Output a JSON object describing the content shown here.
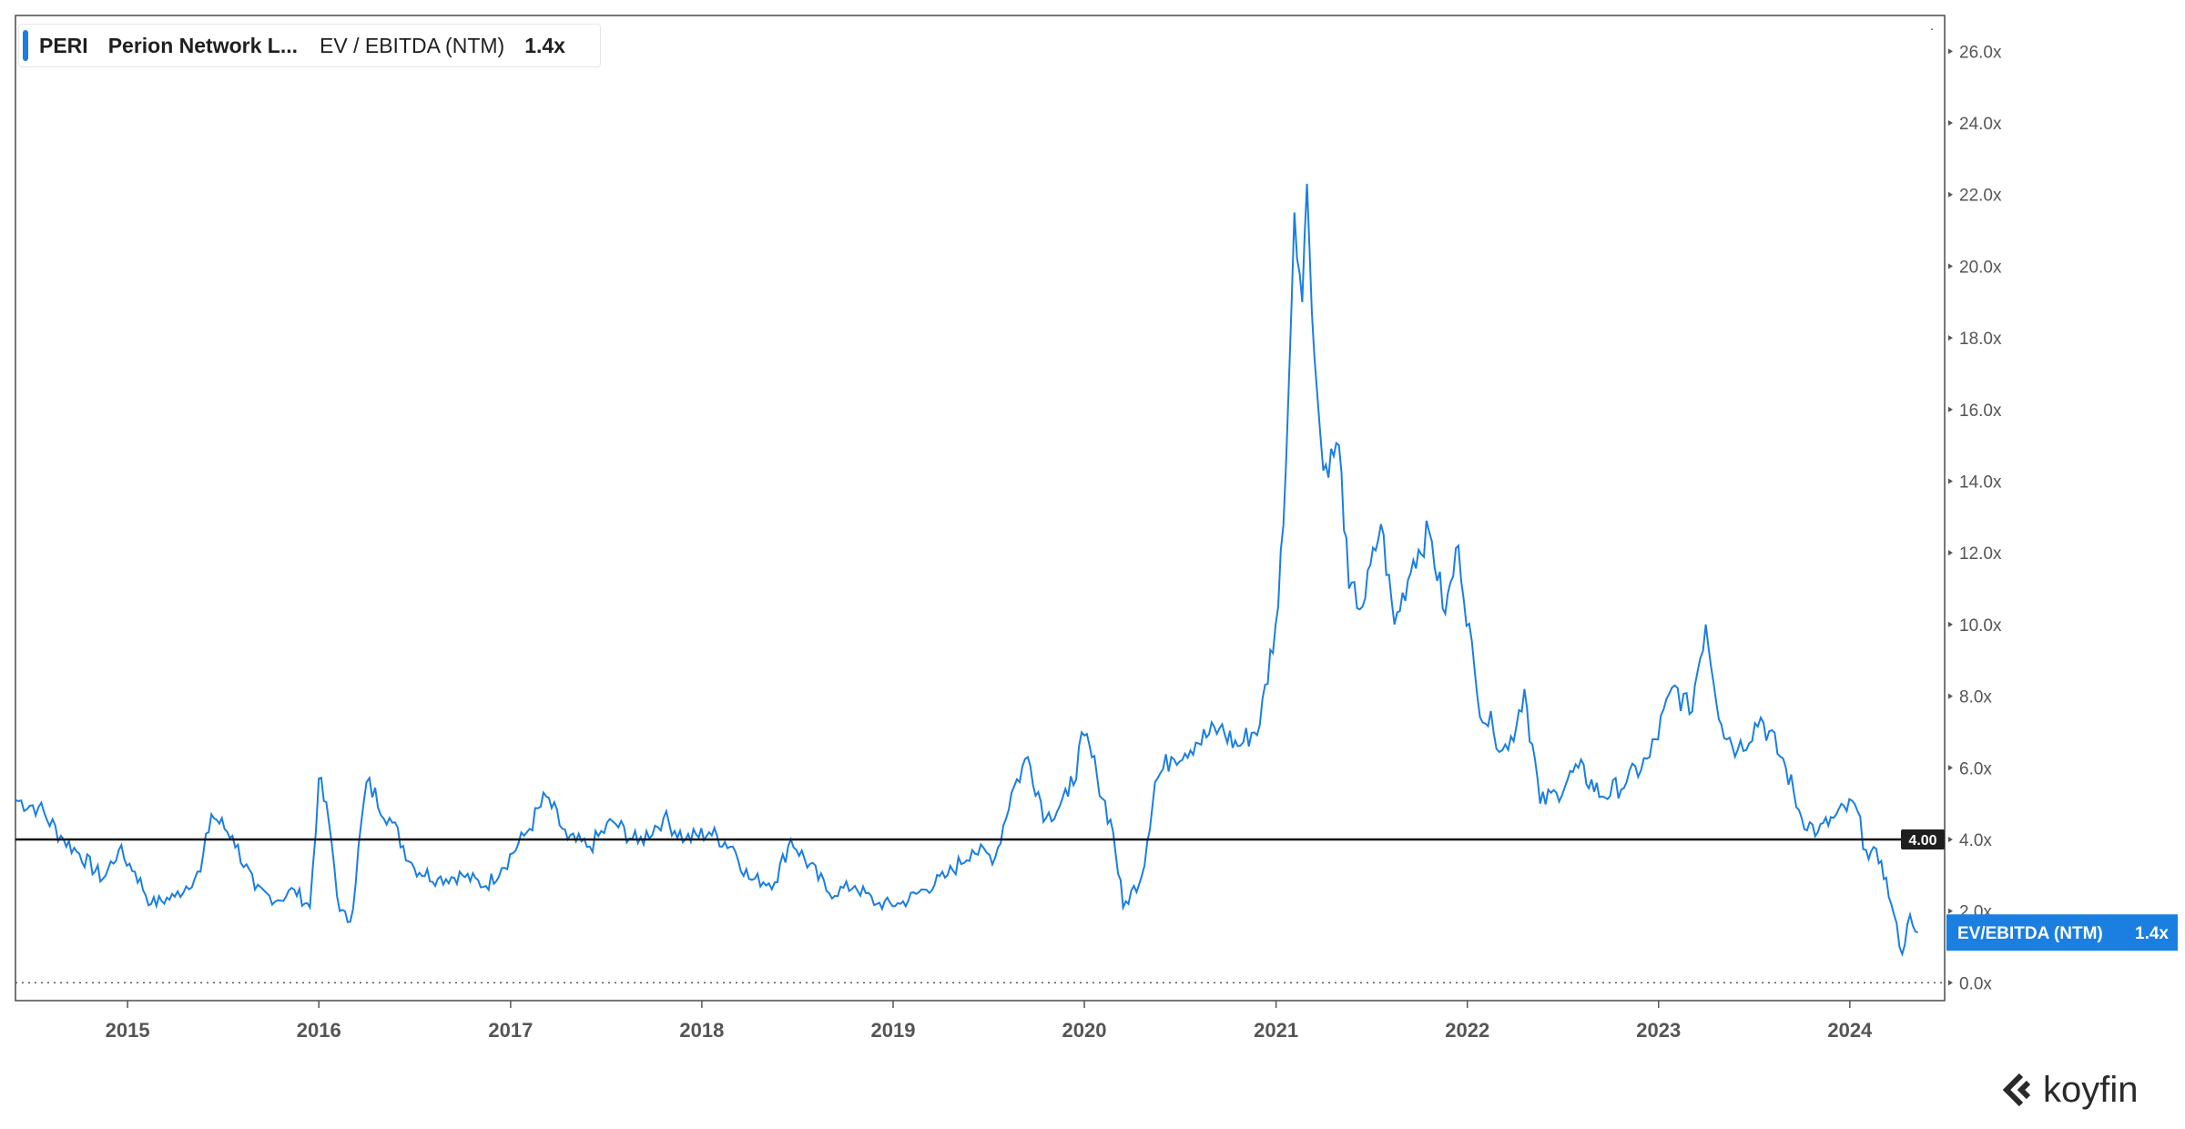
{
  "legend": {
    "ticker": "PERI",
    "company": "Perion Network L...",
    "metric": "EV / EBITDA (NTM)",
    "value": "1.4x"
  },
  "brand": {
    "name": "koyfin"
  },
  "colors": {
    "series": "#1a7fe0",
    "reference": "#111111",
    "axis": "#555555",
    "frame": "#4a4a4a"
  },
  "chart_data": {
    "type": "line",
    "series": [
      {
        "name": "EV/EBITDA (NTM)",
        "last_value_label": "1.4x",
        "points": [
          [
            "2014-06-01",
            5.1
          ],
          [
            "2014-07-15",
            4.9
          ],
          [
            "2014-09-01",
            4.0
          ],
          [
            "2014-10-01",
            3.6
          ],
          [
            "2014-11-15",
            2.9
          ],
          [
            "2014-12-15",
            3.7
          ],
          [
            "2015-01-15",
            3.1
          ],
          [
            "2015-02-15",
            2.2
          ],
          [
            "2015-04-01",
            2.4
          ],
          [
            "2015-05-20",
            3.1
          ],
          [
            "2015-06-10",
            4.7
          ],
          [
            "2015-07-20",
            4.1
          ],
          [
            "2015-09-01",
            2.6
          ],
          [
            "2015-10-15",
            2.3
          ],
          [
            "2015-11-15",
            2.6
          ],
          [
            "2015-12-15",
            2.1
          ],
          [
            "2016-01-01",
            5.7
          ],
          [
            "2016-01-20",
            4.5
          ],
          [
            "2016-02-10",
            2.0
          ],
          [
            "2016-03-01",
            1.7
          ],
          [
            "2016-04-01",
            5.6
          ],
          [
            "2016-05-15",
            4.6
          ],
          [
            "2016-07-01",
            3.2
          ],
          [
            "2016-08-15",
            2.9
          ],
          [
            "2016-10-01",
            3.0
          ],
          [
            "2016-11-15",
            2.7
          ],
          [
            "2016-12-15",
            3.2
          ],
          [
            "2017-02-01",
            4.2
          ],
          [
            "2017-03-10",
            5.2
          ],
          [
            "2017-04-20",
            4.0
          ],
          [
            "2017-06-01",
            3.8
          ],
          [
            "2017-07-15",
            4.5
          ],
          [
            "2017-09-01",
            3.9
          ],
          [
            "2017-10-20",
            4.6
          ],
          [
            "2017-12-01",
            4.0
          ],
          [
            "2018-01-15",
            4.2
          ],
          [
            "2018-03-01",
            3.8
          ],
          [
            "2018-04-01",
            2.9
          ],
          [
            "2018-05-20",
            2.8
          ],
          [
            "2018-06-20",
            4.0
          ],
          [
            "2018-09-01",
            2.5
          ],
          [
            "2018-10-20",
            2.7
          ],
          [
            "2018-12-01",
            2.2
          ],
          [
            "2019-01-15",
            2.2
          ],
          [
            "2019-03-01",
            2.6
          ],
          [
            "2019-04-15",
            3.0
          ],
          [
            "2019-06-01",
            3.7
          ],
          [
            "2019-07-15",
            3.5
          ],
          [
            "2019-08-15",
            5.3
          ],
          [
            "2019-09-15",
            6.3
          ],
          [
            "2019-10-20",
            4.6
          ],
          [
            "2019-12-01",
            5.2
          ],
          [
            "2020-01-01",
            6.9
          ],
          [
            "2020-01-25",
            5.8
          ],
          [
            "2020-02-25",
            4.2
          ],
          [
            "2020-03-15",
            2.1
          ],
          [
            "2020-04-20",
            3.0
          ],
          [
            "2020-05-15",
            5.6
          ],
          [
            "2020-06-15",
            6.3
          ],
          [
            "2020-08-01",
            6.7
          ],
          [
            "2020-09-15",
            7.1
          ],
          [
            "2020-10-20",
            6.6
          ],
          [
            "2020-12-01",
            7.2
          ],
          [
            "2021-01-05",
            10.5
          ],
          [
            "2021-01-20",
            14.5
          ],
          [
            "2021-02-05",
            21.5
          ],
          [
            "2021-02-20",
            19.0
          ],
          [
            "2021-03-01",
            22.3
          ],
          [
            "2021-03-15",
            17.5
          ],
          [
            "2021-04-01",
            14.3
          ],
          [
            "2021-05-01",
            15.0
          ],
          [
            "2021-05-20",
            11.0
          ],
          [
            "2021-06-15",
            10.5
          ],
          [
            "2021-07-20",
            12.8
          ],
          [
            "2021-08-15",
            10.0
          ],
          [
            "2021-09-20",
            11.8
          ],
          [
            "2021-10-20",
            12.6
          ],
          [
            "2021-11-20",
            10.3
          ],
          [
            "2021-12-15",
            12.2
          ],
          [
            "2022-01-20",
            8.0
          ],
          [
            "2022-02-20",
            7.0
          ],
          [
            "2022-03-20",
            6.5
          ],
          [
            "2022-04-20",
            8.2
          ],
          [
            "2022-05-20",
            5.0
          ],
          [
            "2022-06-20",
            5.3
          ],
          [
            "2022-08-01",
            6.0
          ],
          [
            "2022-09-15",
            5.2
          ],
          [
            "2022-11-01",
            5.6
          ],
          [
            "2022-12-15",
            6.3
          ],
          [
            "2023-02-01",
            8.3
          ],
          [
            "2023-03-01",
            7.5
          ],
          [
            "2023-04-01",
            10.0
          ],
          [
            "2023-05-01",
            7.2
          ],
          [
            "2023-06-01",
            6.5
          ],
          [
            "2023-07-15",
            7.4
          ],
          [
            "2023-09-01",
            6.0
          ],
          [
            "2023-10-01",
            4.6
          ],
          [
            "2023-11-01",
            4.2
          ],
          [
            "2023-12-01",
            4.6
          ],
          [
            "2024-01-10",
            5.0
          ],
          [
            "2024-02-01",
            3.7
          ],
          [
            "2024-03-01",
            3.4
          ],
          [
            "2024-03-20",
            2.2
          ],
          [
            "2024-04-10",
            0.8
          ],
          [
            "2024-04-25",
            1.9
          ],
          [
            "2024-05-10",
            1.4
          ]
        ]
      }
    ],
    "xlabel": "",
    "ylabel": "",
    "x_ticks": [
      "2015",
      "2016",
      "2017",
      "2018",
      "2019",
      "2020",
      "2021",
      "2022",
      "2023",
      "2024"
    ],
    "y_ticks": [
      "0.0x",
      "2.0x",
      "4.0x",
      "6.0x",
      "8.0x",
      "10.0x",
      "12.0x",
      "14.0x",
      "16.0x",
      "18.0x",
      "20.0x",
      "22.0x",
      "24.0x",
      "26.0x"
    ],
    "xlim": [
      "2014-06-01",
      "2024-06-30"
    ],
    "ylim": [
      -0.5,
      27.0
    ],
    "reference_line": {
      "value": 4.0,
      "label": "4.00"
    },
    "zero_line_dotted": true,
    "grid": false,
    "y_axis_side": "right"
  }
}
